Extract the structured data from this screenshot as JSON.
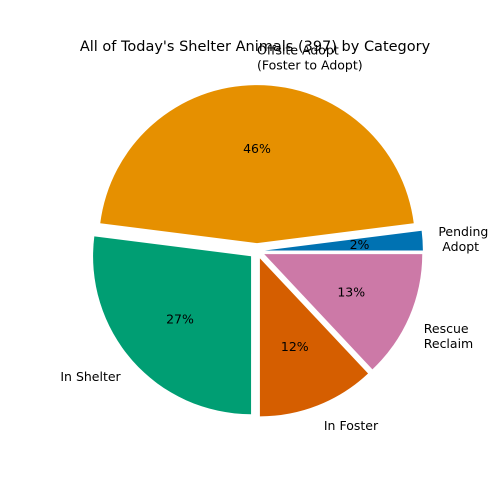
{
  "chart_data": {
    "type": "pie",
    "title": "All of Today's Shelter Animals (397) by Category",
    "start_angle_deg": 0,
    "direction": "counterclockwise",
    "slices": [
      {
        "label": [
          "Pending",
          " Adopt"
        ],
        "percent": 2,
        "percent_label": "2%",
        "color": "#0072b2"
      },
      {
        "label": [
          "Offsite Adopt",
          "(Foster to Adopt)"
        ],
        "percent": 46,
        "percent_label": "46%",
        "color": "#e69000"
      },
      {
        "label": [
          "In Shelter"
        ],
        "percent": 27,
        "percent_label": "27%",
        "color": "#009e73"
      },
      {
        "label": [
          "In Foster"
        ],
        "percent": 12,
        "percent_label": "12%",
        "color": "#d55e00"
      },
      {
        "label": [
          "Rescue",
          "Reclaim"
        ],
        "percent": 13,
        "percent_label": "13%",
        "color": "#cc79a7"
      }
    ]
  }
}
